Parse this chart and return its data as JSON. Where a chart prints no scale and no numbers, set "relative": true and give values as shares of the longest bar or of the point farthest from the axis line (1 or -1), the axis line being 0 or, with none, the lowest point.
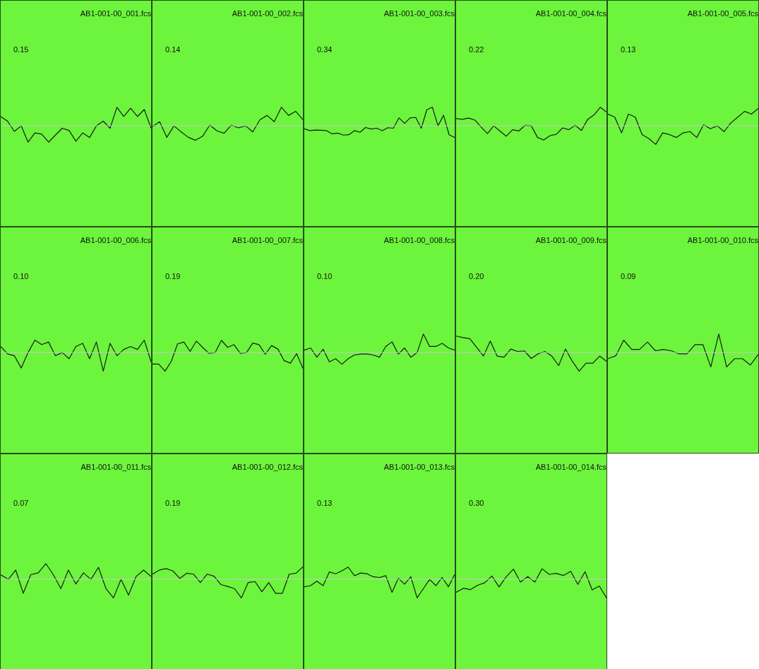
{
  "chart_data": [
    {
      "type": "line",
      "relative": true,
      "title": "AB1-001-00_001.fcs",
      "annotations": [
        "0.15"
      ],
      "categories": [
        null,
        null,
        null,
        null,
        null,
        null,
        null,
        null,
        null,
        null,
        null,
        null,
        null,
        null,
        null,
        null,
        null,
        null,
        null,
        null,
        null,
        null,
        null
      ],
      "series": [
        {
          "color": "#1a1a1a",
          "values": [
            0.5,
            0.25,
            -0.3,
            0,
            -0.88,
            -0.38,
            -0.45,
            -0.88,
            -0.5,
            -0.13,
            -0.25,
            -0.83,
            -0.38,
            -0.63,
            0,
            0.25,
            -0.13,
            1,
            0.5,
            0.95,
            0.5,
            0.88,
            -0.13
          ]
        }
      ]
    },
    {
      "type": "line",
      "relative": true,
      "title": "AB1-001-00_002.fcs",
      "annotations": [
        "0.14"
      ],
      "categories": [
        null,
        null,
        null,
        null,
        null,
        null,
        null,
        null,
        null,
        null,
        null,
        null,
        null,
        null,
        null,
        null,
        null,
        null,
        null,
        null,
        null,
        null
      ],
      "series": [
        {
          "color": "#1a1a1a",
          "values": [
            -0.04,
            0.22,
            -0.62,
            0,
            -0.33,
            -0.62,
            -0.78,
            -0.56,
            0.04,
            -0.27,
            -0.4,
            0.04,
            -0.11,
            0,
            -0.33,
            0.33,
            0.56,
            0.22,
            1,
            0.56,
            0.78,
            0.33
          ]
        }
      ]
    },
    {
      "type": "line",
      "relative": true,
      "title": "AB1-001-00_003.fcs",
      "annotations": [
        "0.34"
      ],
      "categories": [
        null,
        null,
        null,
        null,
        null,
        null,
        null,
        null,
        null,
        null,
        null,
        null,
        null,
        null,
        null,
        null,
        null,
        null,
        null,
        null,
        null,
        null,
        null,
        null,
        null,
        null,
        null,
        null
      ],
      "series": [
        {
          "color": "#1a1a1a",
          "values": [
            -0.16,
            -0.26,
            -0.23,
            -0.24,
            -0.26,
            -0.43,
            -0.39,
            -0.5,
            -0.48,
            -0.26,
            -0.35,
            -0.09,
            -0.17,
            -0.13,
            -0.26,
            -0.1,
            -0.13,
            0.43,
            0.13,
            0.43,
            0.45,
            -0.13,
            0.87,
            1,
            0,
            0.57,
            -0.48,
            -0.63
          ]
        }
      ]
    },
    {
      "type": "line",
      "relative": true,
      "title": "AB1-001-00_004.fcs",
      "annotations": [
        "0.22"
      ],
      "categories": [
        null,
        null,
        null,
        null,
        null,
        null,
        null,
        null,
        null,
        null,
        null,
        null,
        null,
        null,
        null,
        null,
        null,
        null,
        null,
        null,
        null,
        null,
        null,
        null,
        null
      ],
      "series": [
        {
          "color": "#1a1a1a",
          "values": [
            0.39,
            0.35,
            0.42,
            0.31,
            -0.07,
            -0.42,
            0,
            -0.28,
            -0.56,
            -0.21,
            -0.28,
            0.03,
            0,
            -0.63,
            -0.76,
            -0.53,
            -0.46,
            -0.11,
            -0.21,
            0.03,
            -0.25,
            0.35,
            0.58,
            1,
            0.74
          ]
        }
      ]
    },
    {
      "type": "line",
      "relative": true,
      "title": "AB1-001-00_005.fcs",
      "annotations": [
        "0.13"
      ],
      "categories": [
        null,
        null,
        null,
        null,
        null,
        null,
        null,
        null,
        null,
        null,
        null,
        null,
        null,
        null,
        null,
        null,
        null,
        null,
        null,
        null,
        null,
        null,
        null
      ],
      "series": [
        {
          "color": "#1a1a1a",
          "values": [
            0.63,
            0.47,
            -0.38,
            0.63,
            0.47,
            -0.47,
            -0.69,
            -1,
            -0.38,
            -0.47,
            -0.63,
            -0.38,
            -0.31,
            -0.63,
            0.06,
            -0.16,
            0,
            -0.31,
            0.16,
            0.47,
            0.78,
            0.63,
            0.94
          ]
        }
      ]
    },
    {
      "type": "line",
      "relative": true,
      "title": "AB1-001-00_006.fcs",
      "annotations": [
        "0.10"
      ],
      "categories": [
        null,
        null,
        null,
        null,
        null,
        null,
        null,
        null,
        null,
        null,
        null,
        null,
        null,
        null,
        null,
        null,
        null,
        null,
        null,
        null,
        null,
        null,
        null
      ],
      "series": [
        {
          "color": "#1a1a1a",
          "values": [
            0.33,
            -0.07,
            -0.17,
            -0.83,
            0,
            0.67,
            0.43,
            0.57,
            -0.17,
            0,
            -0.33,
            0.33,
            0.5,
            -0.33,
            0.57,
            -1,
            0.5,
            -0.17,
            0.17,
            0.33,
            0.17,
            0.67,
            -0.5
          ]
        }
      ]
    },
    {
      "type": "line",
      "relative": true,
      "title": "AB1-001-00_007.fcs",
      "annotations": [
        "0.19"
      ],
      "categories": [
        null,
        null,
        null,
        null,
        null,
        null,
        null,
        null,
        null,
        null,
        null,
        null,
        null,
        null,
        null,
        null,
        null,
        null,
        null,
        null,
        null,
        null,
        null,
        null,
        null
      ],
      "series": [
        {
          "color": "#1a1a1a",
          "values": [
            -0.62,
            -0.62,
            -1,
            -0.47,
            0.47,
            0.57,
            0.06,
            0.62,
            0.28,
            -0.04,
            0,
            0.66,
            0.28,
            0.43,
            -0.04,
            0,
            0.51,
            0.43,
            -0.09,
            0.38,
            0.19,
            -0.43,
            -0.57,
            -0.06,
            -0.85
          ]
        }
      ]
    },
    {
      "type": "line",
      "relative": true,
      "title": "AB1-001-00_008.fcs",
      "annotations": [
        "0.10"
      ],
      "categories": [
        null,
        null,
        null,
        null,
        null,
        null,
        null,
        null,
        null,
        null,
        null,
        null,
        null,
        null,
        null,
        null,
        null,
        null,
        null,
        null,
        null,
        null,
        null,
        null,
        null
      ],
      "series": [
        {
          "color": "#1a1a1a",
          "values": [
            0.13,
            0.25,
            -0.25,
            0.18,
            -0.5,
            -0.33,
            -0.63,
            -0.33,
            -0.13,
            -0.08,
            -0.08,
            -0.13,
            -0.25,
            0.33,
            0.58,
            -0.08,
            0.25,
            -0.25,
            0,
            1,
            0.33,
            0.33,
            0.5,
            0.25,
            0.13
          ]
        }
      ]
    },
    {
      "type": "line",
      "relative": true,
      "title": "AB1-001-00_009.fcs",
      "annotations": [
        "0.20"
      ],
      "categories": [
        null,
        null,
        null,
        null,
        null,
        null,
        null,
        null,
        null,
        null,
        null,
        null,
        null,
        null,
        null,
        null,
        null,
        null,
        null,
        null,
        null,
        null,
        null
      ],
      "series": [
        {
          "color": "#1a1a1a",
          "values": [
            0.89,
            0.81,
            0.75,
            0.28,
            -0.19,
            0.62,
            -0.19,
            -0.25,
            0.19,
            0.06,
            0.09,
            -0.32,
            -0.06,
            0.06,
            -0.19,
            -0.7,
            0.19,
            -0.47,
            -1,
            -0.57,
            -0.57,
            -0.19,
            -0.47
          ]
        }
      ]
    },
    {
      "type": "line",
      "relative": true,
      "title": "AB1-001-00_010.fcs",
      "annotations": [
        "0.09"
      ],
      "categories": [
        null,
        null,
        null,
        null,
        null,
        null,
        null,
        null,
        null,
        null,
        null,
        null,
        null,
        null,
        null,
        null,
        null,
        null,
        null,
        null
      ],
      "series": [
        {
          "color": "#1a1a1a",
          "values": [
            -0.33,
            -0.17,
            0.67,
            0.17,
            0.17,
            0.57,
            0.1,
            0.17,
            0.1,
            -0.07,
            -0.07,
            0.43,
            0.43,
            -0.77,
            1,
            -0.77,
            -0.33,
            -0.33,
            -0.67,
            -0.1
          ]
        }
      ]
    },
    {
      "type": "line",
      "relative": true,
      "title": "AB1-001-00_011.fcs",
      "annotations": [
        "0.07"
      ],
      "categories": [
        null,
        null,
        null,
        null,
        null,
        null,
        null,
        null,
        null,
        null,
        null,
        null,
        null,
        null,
        null,
        null,
        null,
        null,
        null,
        null,
        null
      ],
      "series": [
        {
          "color": "#1a1a1a",
          "values": [
            0.25,
            0,
            0.5,
            -0.75,
            0.25,
            0.35,
            0.85,
            0.25,
            -0.5,
            0.5,
            -0.25,
            0.35,
            0,
            0.65,
            -0.5,
            -1,
            0,
            -0.85,
            0.15,
            0.5,
            0.15
          ]
        }
      ]
    },
    {
      "type": "line",
      "relative": true,
      "title": "AB1-001-00_012.fcs",
      "annotations": [
        "0.19"
      ],
      "categories": [
        null,
        null,
        null,
        null,
        null,
        null,
        null,
        null,
        null,
        null,
        null,
        null,
        null,
        null,
        null,
        null,
        null,
        null,
        null,
        null,
        null,
        null,
        null
      ],
      "series": [
        {
          "color": "#1a1a1a",
          "values": [
            0.28,
            0.5,
            0.58,
            0.45,
            0.05,
            0.33,
            0.28,
            -0.17,
            0.28,
            0.17,
            -0.28,
            -0.38,
            -0.5,
            -1,
            -0.17,
            -0.12,
            -0.67,
            -0.17,
            -0.75,
            -0.75,
            0.28,
            0.33,
            0.67
          ]
        }
      ]
    },
    {
      "type": "line",
      "relative": true,
      "title": "AB1-001-00_013.fcs",
      "annotations": [
        "0.13"
      ],
      "categories": [
        null,
        null,
        null,
        null,
        null,
        null,
        null,
        null,
        null,
        null,
        null,
        null,
        null,
        null,
        null,
        null,
        null,
        null,
        null,
        null,
        null,
        null,
        null,
        null,
        null
      ],
      "series": [
        {
          "color": "#1a1a1a",
          "values": [
            -0.4,
            -0.34,
            -0.1,
            -0.34,
            0.4,
            0.3,
            0.46,
            0.66,
            0.2,
            0.34,
            0.3,
            0.14,
            0.1,
            0.2,
            -0.7,
            0.06,
            -0.26,
            0.14,
            -1,
            -0.5,
            0,
            -0.34,
            0.1,
            -0.4,
            0.26
          ]
        }
      ]
    },
    {
      "type": "line",
      "relative": true,
      "title": "AB1-001-00_014.fcs",
      "annotations": [
        "0.30"
      ],
      "categories": [
        null,
        null,
        null,
        null,
        null,
        null,
        null,
        null,
        null,
        null,
        null,
        null,
        null,
        null,
        null,
        null,
        null,
        null,
        null,
        null,
        null,
        null
      ],
      "series": [
        {
          "color": "#1a1a1a",
          "values": [
            -0.7,
            -0.48,
            -0.55,
            -0.32,
            -0.18,
            0.18,
            -0.41,
            0.14,
            0.55,
            -0.15,
            0.15,
            -0.15,
            0.57,
            0.27,
            0.32,
            0.21,
            0.43,
            -0.27,
            0.41,
            -0.57,
            -0.36,
            -1
          ]
        }
      ]
    }
  ]
}
